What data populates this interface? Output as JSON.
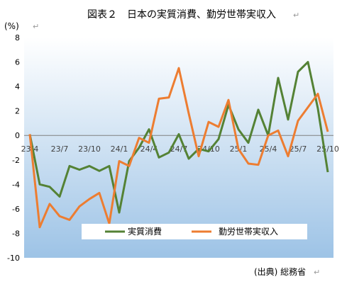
{
  "figure": {
    "title": "図表２　日本の実質消費、勤労世帯実収入",
    "unit_label": "(%)",
    "source_note": "(出典) 総務省"
  },
  "colors": {
    "consumption": "#548235",
    "income": "#ED7D31",
    "bg_top": "#ffffff",
    "bg_bottom": "#9DC3E6",
    "axis": "#808080"
  },
  "chart_data": {
    "type": "line",
    "title": "図表２　日本の実質消費、勤労世帯実収入",
    "xlabel": "",
    "ylabel": "(%)",
    "ylim": [
      -10,
      8
    ],
    "yticks": [
      -10,
      -8,
      -6,
      -4,
      -2,
      0,
      2,
      4,
      6,
      8
    ],
    "grid": false,
    "legend_position": "bottom",
    "x": [
      "23/4",
      "23/5",
      "23/6",
      "23/7",
      "23/8",
      "23/9",
      "23/10",
      "23/11",
      "23/12",
      "24/1",
      "24/2",
      "24/3",
      "24/4",
      "24/5",
      "24/6",
      "24/7",
      "24/8",
      "24/9",
      "24/10",
      "24/11",
      "24/12",
      "25/1",
      "25/2",
      "25/3",
      "25/4",
      "25/5",
      "25/6",
      "25/7",
      "25/8",
      "25/9",
      "25/10"
    ],
    "x_tick_labels": [
      {
        "index": 0,
        "label": "23/4"
      },
      {
        "index": 3,
        "label": "23/7"
      },
      {
        "index": 6,
        "label": "23/10"
      },
      {
        "index": 9,
        "label": "24/1"
      },
      {
        "index": 12,
        "label": "24/4"
      },
      {
        "index": 15,
        "label": "24/7"
      },
      {
        "index": 18,
        "label": "24/10"
      },
      {
        "index": 21,
        "label": "25/1"
      },
      {
        "index": 24,
        "label": "25/4"
      },
      {
        "index": 27,
        "label": "25/7"
      },
      {
        "index": 30,
        "label": "25/10"
      }
    ],
    "series": [
      {
        "name": "実質消費",
        "color": "#548235",
        "values": [
          0.1,
          -4.0,
          -4.2,
          -5.0,
          -2.5,
          -2.8,
          -2.5,
          -2.9,
          -2.5,
          -6.3,
          -2.1,
          -1.0,
          0.5,
          -1.8,
          -1.4,
          0.1,
          -1.9,
          -1.1,
          -1.3,
          -0.3,
          2.5,
          0.5,
          -0.6,
          2.1,
          0.0,
          4.7,
          1.3,
          5.2,
          6.0,
          2.2,
          -3.0
        ]
      },
      {
        "name": "勤労世帯実収入",
        "color": "#ED7D31",
        "values": [
          0.1,
          -7.5,
          -5.6,
          -6.6,
          -6.9,
          -5.8,
          -5.2,
          -4.7,
          -7.2,
          -2.1,
          -2.5,
          -0.2,
          -0.6,
          3.0,
          3.1,
          5.5,
          1.8,
          -1.7,
          1.1,
          0.7,
          2.9,
          -1.1,
          -2.3,
          -2.4,
          0.0,
          0.4,
          -1.7,
          1.2,
          2.3,
          3.4,
          0.3
        ]
      }
    ]
  }
}
